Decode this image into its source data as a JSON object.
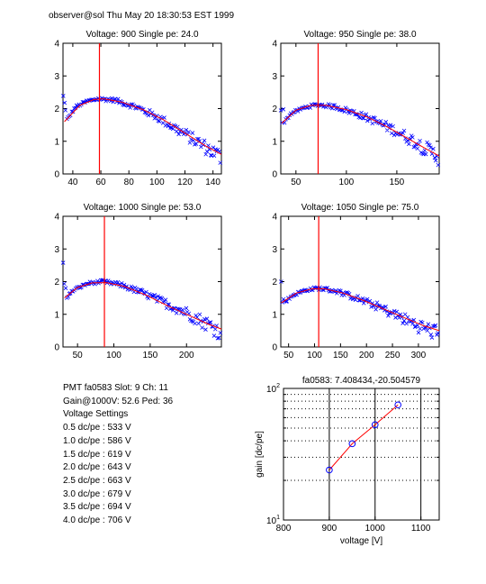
{
  "header": {
    "text": "observer@sol  Thu May 20 18:30:53 EST 1999"
  },
  "info": {
    "pmt_line": "PMT fa0583 Slot: 9 Ch: 11",
    "gain_line": "Gain@1000V: 52.6 Ped: 36",
    "settings_title": "Voltage Settings",
    "settings": [
      "0.5 dc/pe : 533 V",
      "1.0 dc/pe : 586 V",
      "1.5 dc/pe : 619 V",
      "2.0 dc/pe : 643 V",
      "2.5 dc/pe : 663 V",
      "3.0 dc/pe : 679 V",
      "3.5 dc/pe : 694 V",
      "4.0 dc/pe : 706 V"
    ]
  },
  "colors": {
    "marker": "#0000ff",
    "fit": "#ff0000",
    "axis": "#000000"
  },
  "chart_data": [
    {
      "type": "scatter",
      "title": "Voltage: 900 Single pe: 24.0",
      "xlim": [
        33,
        146
      ],
      "ylim": [
        0,
        4
      ],
      "xticks": [
        40,
        60,
        80,
        100,
        120,
        140
      ],
      "yticks": [
        0,
        1,
        2,
        3,
        4
      ],
      "marker_x": 59,
      "shape": [
        [
          34,
          1.55
        ],
        [
          42,
          2.05
        ],
        [
          50,
          2.22
        ],
        [
          58,
          2.3
        ],
        [
          70,
          2.26
        ],
        [
          85,
          2.05
        ],
        [
          100,
          1.75
        ],
        [
          115,
          1.35
        ],
        [
          130,
          0.95
        ],
        [
          146,
          0.5
        ]
      ],
      "fit": [
        [
          34,
          1.6
        ],
        [
          45,
          2.1
        ],
        [
          55,
          2.28
        ],
        [
          62,
          2.3
        ],
        [
          75,
          2.2
        ],
        [
          90,
          1.97
        ],
        [
          105,
          1.65
        ],
        [
          120,
          1.25
        ],
        [
          135,
          0.85
        ],
        [
          146,
          0.6
        ]
      ]
    },
    {
      "type": "scatter",
      "title": "Voltage: 950 Single pe: 38.0",
      "xlim": [
        35,
        192
      ],
      "ylim": [
        0,
        4
      ],
      "xticks": [
        50,
        100,
        150
      ],
      "yticks": [
        0,
        1,
        2,
        3,
        4
      ],
      "marker_x": 72,
      "shape": [
        [
          36,
          1.5
        ],
        [
          45,
          1.85
        ],
        [
          60,
          2.05
        ],
        [
          72,
          2.12
        ],
        [
          90,
          2.05
        ],
        [
          110,
          1.85
        ],
        [
          130,
          1.6
        ],
        [
          150,
          1.3
        ],
        [
          170,
          0.95
        ],
        [
          192,
          0.5
        ]
      ],
      "fit": [
        [
          36,
          1.55
        ],
        [
          50,
          1.95
        ],
        [
          65,
          2.1
        ],
        [
          80,
          2.1
        ],
        [
          100,
          1.97
        ],
        [
          120,
          1.75
        ],
        [
          140,
          1.45
        ],
        [
          160,
          1.1
        ],
        [
          180,
          0.75
        ],
        [
          192,
          0.55
        ]
      ]
    },
    {
      "type": "scatter",
      "title": "Voltage: 1000 Single pe: 53.0",
      "xlim": [
        30,
        248
      ],
      "ylim": [
        0,
        4
      ],
      "xticks": [
        50,
        100,
        150,
        200
      ],
      "yticks": [
        0,
        1,
        2,
        3,
        4
      ],
      "marker_x": 87,
      "shape": [
        [
          32,
          1.45
        ],
        [
          45,
          1.75
        ],
        [
          65,
          1.95
        ],
        [
          85,
          2.0
        ],
        [
          110,
          1.9
        ],
        [
          140,
          1.65
        ],
        [
          170,
          1.35
        ],
        [
          200,
          1.05
        ],
        [
          225,
          0.75
        ],
        [
          248,
          0.45
        ]
      ],
      "fit": [
        [
          32,
          1.5
        ],
        [
          50,
          1.82
        ],
        [
          70,
          1.96
        ],
        [
          90,
          1.97
        ],
        [
          115,
          1.85
        ],
        [
          145,
          1.58
        ],
        [
          175,
          1.25
        ],
        [
          205,
          0.95
        ],
        [
          230,
          0.7
        ],
        [
          248,
          0.55
        ]
      ]
    },
    {
      "type": "scatter",
      "title": "Voltage: 1050 Single pe: 75.0",
      "xlim": [
        35,
        340
      ],
      "ylim": [
        0,
        4
      ],
      "xticks": [
        50,
        100,
        150,
        200,
        250,
        300
      ],
      "yticks": [
        0,
        1,
        2,
        3,
        4
      ],
      "marker_x": 108,
      "shape": [
        [
          36,
          1.3
        ],
        [
          60,
          1.6
        ],
        [
          85,
          1.75
        ],
        [
          108,
          1.8
        ],
        [
          140,
          1.72
        ],
        [
          180,
          1.5
        ],
        [
          220,
          1.25
        ],
        [
          260,
          0.95
        ],
        [
          300,
          0.65
        ],
        [
          340,
          0.4
        ]
      ],
      "fit": [
        [
          36,
          1.35
        ],
        [
          65,
          1.65
        ],
        [
          95,
          1.78
        ],
        [
          120,
          1.78
        ],
        [
          155,
          1.65
        ],
        [
          195,
          1.42
        ],
        [
          235,
          1.15
        ],
        [
          275,
          0.88
        ],
        [
          310,
          0.65
        ],
        [
          340,
          0.5
        ]
      ]
    },
    {
      "type": "line",
      "title": "fa0583: 7.408434,-20.504579",
      "xlabel": "voltage [V]",
      "ylabel": "gain [dc/pe]",
      "xscale": "linear",
      "yscale": "log",
      "xlim": [
        800,
        1140
      ],
      "ylim": [
        10,
        100
      ],
      "xticks": [
        800,
        900,
        1000,
        1100
      ],
      "ytick_labels": [
        {
          "value": 10,
          "base": "10",
          "exp": "1"
        },
        {
          "value": 100,
          "base": "10",
          "exp": "2"
        }
      ],
      "grid": true,
      "x": [
        900,
        950,
        1000,
        1050
      ],
      "y": [
        24.0,
        38.0,
        53.0,
        75.0
      ],
      "marker": "circle"
    }
  ]
}
